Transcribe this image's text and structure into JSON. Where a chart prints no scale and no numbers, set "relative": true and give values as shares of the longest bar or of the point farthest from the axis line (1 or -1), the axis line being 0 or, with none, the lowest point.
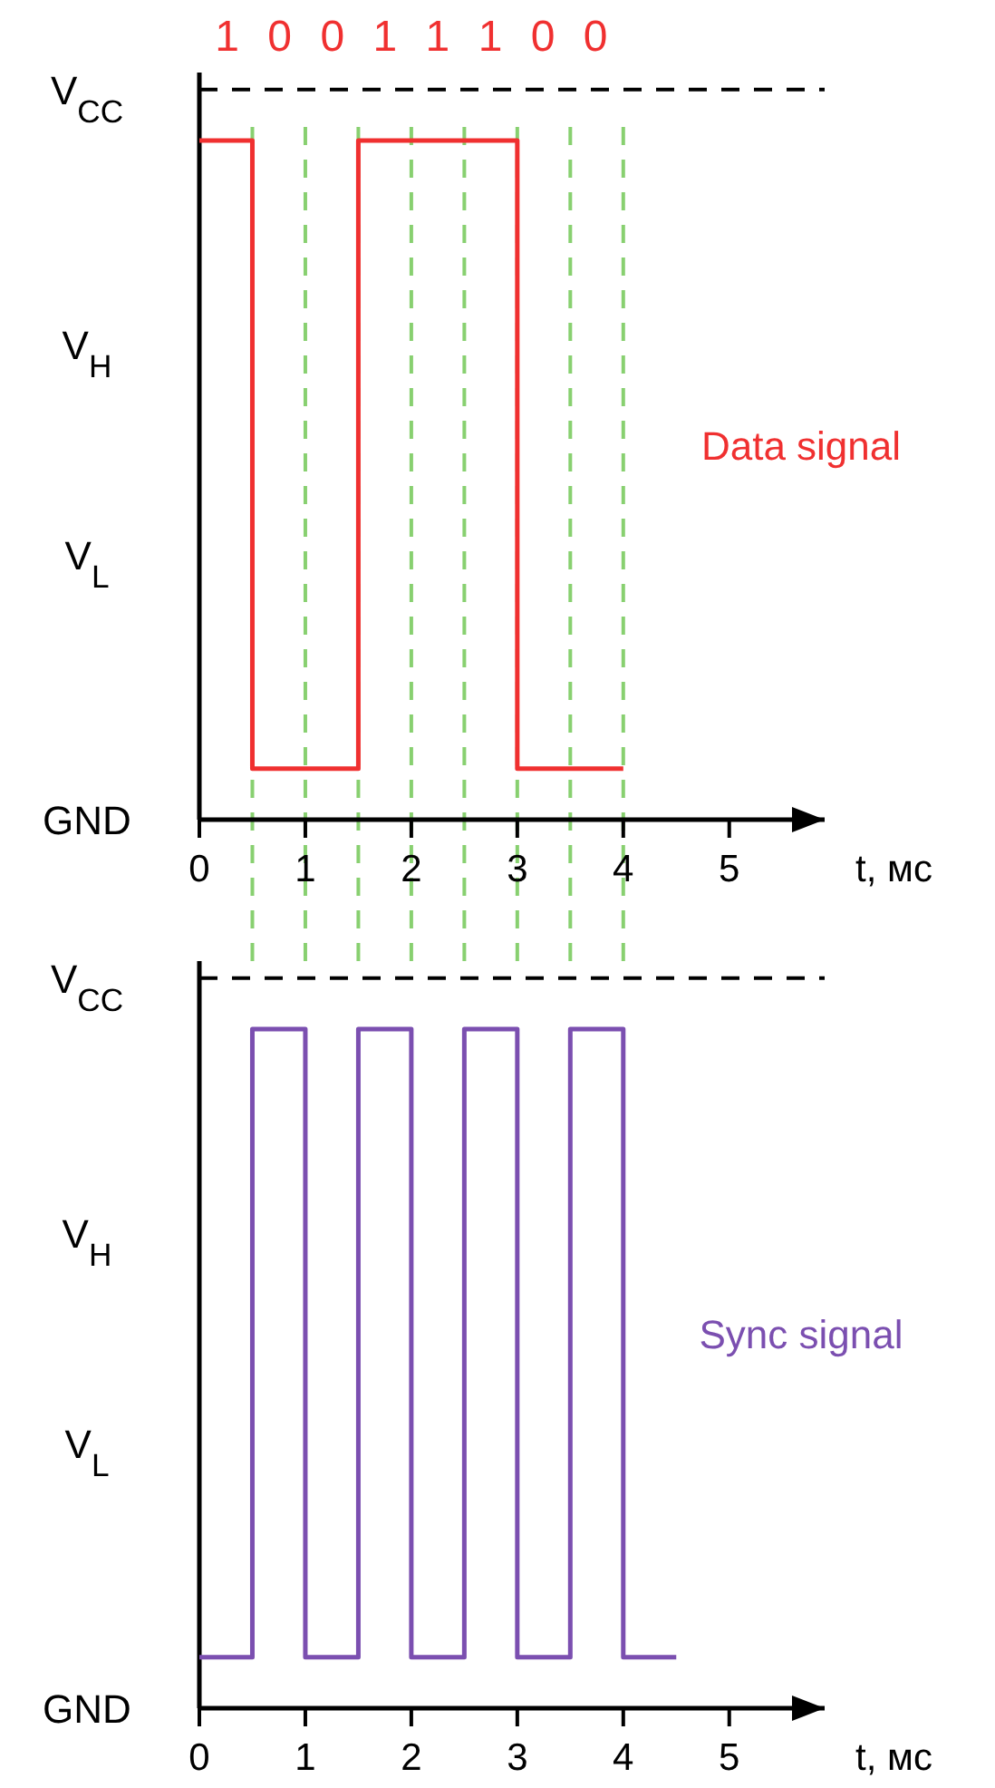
{
  "chart_data": [
    {
      "type": "step",
      "relative": true,
      "xlim": [
        0,
        5.9
      ],
      "xticks": [
        0,
        1,
        2,
        3,
        4,
        5
      ],
      "xlabel": "t, мс",
      "legend": false,
      "grid": false,
      "series": [
        {
          "name": "Data signal",
          "color": "#f03030",
          "x": [
            0,
            0.5,
            1.5,
            3,
            4
          ],
          "values": [
            1,
            0.075,
            1,
            0.075,
            0.075
          ]
        }
      ],
      "ref_lines": [
        {
          "axis": "y",
          "value": 1.075,
          "color": "#000000",
          "line_style": "dashed"
        },
        {
          "axis": "x",
          "value": 0.5,
          "color": "#88d070",
          "line_style": "dashed"
        },
        {
          "axis": "x",
          "value": 1,
          "color": "#88d070",
          "line_style": "dashed"
        },
        {
          "axis": "x",
          "value": 1.5,
          "color": "#88d070",
          "line_style": "dashed"
        },
        {
          "axis": "x",
          "value": 2,
          "color": "#88d070",
          "line_style": "dashed"
        },
        {
          "axis": "x",
          "value": 2.5,
          "color": "#88d070",
          "line_style": "dashed"
        },
        {
          "axis": "x",
          "value": 3,
          "color": "#88d070",
          "line_style": "dashed"
        },
        {
          "axis": "x",
          "value": 3.5,
          "color": "#88d070",
          "line_style": "dashed"
        },
        {
          "axis": "x",
          "value": 4,
          "color": "#88d070",
          "line_style": "dashed"
        }
      ],
      "annotations": [
        "1 0 0 1 1 1 0 0",
        "V$_{CC}$",
        "V$_{H}$",
        "V$_{L}$",
        "GND"
      ]
    },
    {
      "type": "step",
      "relative": true,
      "xlim": [
        0,
        5.9
      ],
      "xticks": [
        0,
        1,
        2,
        3,
        4,
        5
      ],
      "xlabel": "t, мс",
      "legend": false,
      "grid": false,
      "series": [
        {
          "name": "Sync signal",
          "color": "#7b4fb0",
          "x": [
            0,
            0.5,
            1,
            1.5,
            2,
            2.5,
            3,
            3.5,
            4,
            4.5
          ],
          "values": [
            0.075,
            1,
            0.075,
            1,
            0.075,
            1,
            0.075,
            1,
            0.075,
            0.075
          ]
        }
      ],
      "ref_lines": [
        {
          "axis": "y",
          "value": 1.075,
          "color": "#000000",
          "line_style": "dashed"
        }
      ],
      "annotations": [
        "V$_{CC}$",
        "V$_{H}$",
        "V$_{L}$",
        "GND"
      ]
    }
  ]
}
